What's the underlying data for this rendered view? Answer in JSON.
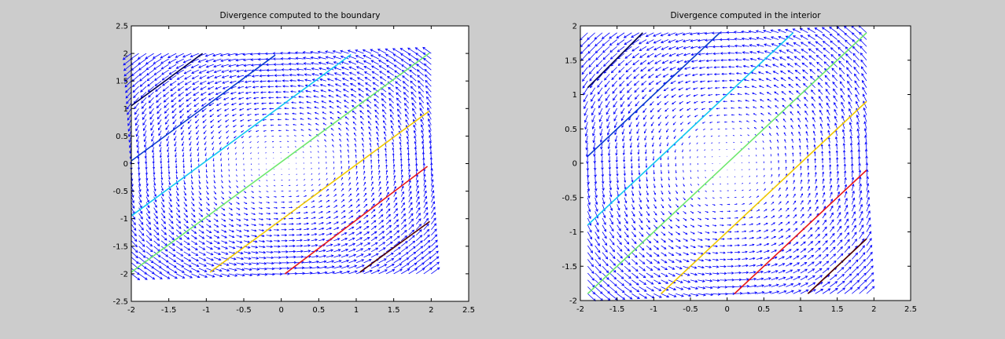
{
  "chart_data": [
    {
      "type": "quiver",
      "title": "Divergence computed to the boundary",
      "xlabel": "",
      "ylabel": "",
      "xlim": [
        -2,
        2.5
      ],
      "ylim": [
        -2.5,
        2.5
      ],
      "xticks": [
        -2,
        -1.5,
        -1,
        -0.5,
        0,
        0.5,
        1,
        1.5,
        2,
        2.5
      ],
      "yticks": [
        -2.5,
        -2,
        -1.5,
        -1,
        -0.5,
        0,
        0.5,
        1,
        1.5,
        2,
        2.5
      ],
      "xtick_labels": [
        "-2",
        "-1.5",
        "-1",
        "-0.5",
        "0",
        "0.5",
        "1",
        "1.5",
        "2",
        "2.5"
      ],
      "ytick_labels": [
        "-2.5",
        "-2",
        "-1.5",
        "-1",
        "-0.5",
        "0",
        "0.5",
        "1",
        "1.5",
        "2",
        "2.5"
      ],
      "field": {
        "x_range": [
          -2,
          2
        ],
        "y_range": [
          -2,
          2
        ],
        "x_step": 0.1,
        "y_step": 0.1,
        "arrow_color": "#0000ff"
      },
      "contours": [
        {
          "color": "#000050",
          "x": [
            -2.0,
            -1.05
          ],
          "y": [
            1.05,
            2.0
          ]
        },
        {
          "color": "#0a3ccf",
          "x": [
            -2.0,
            -0.08
          ],
          "y": [
            0.05,
            1.97
          ]
        },
        {
          "color": "#12c8f0",
          "x": [
            -2.0,
            0.93
          ],
          "y": [
            -0.95,
            1.98
          ]
        },
        {
          "color": "#6ee86e",
          "x": [
            -2.0,
            1.98
          ],
          "y": [
            -1.97,
            2.01
          ]
        },
        {
          "color": "#f0c800",
          "x": [
            -0.95,
            1.97
          ],
          "y": [
            -1.97,
            0.95
          ]
        },
        {
          "color": "#e81818",
          "x": [
            0.05,
            1.95
          ],
          "y": [
            -2.0,
            -0.05
          ]
        },
        {
          "color": "#500000",
          "x": [
            1.05,
            1.98
          ],
          "y": [
            -1.97,
            -1.05
          ]
        }
      ]
    },
    {
      "type": "quiver",
      "title": "Divergence computed in the interior",
      "xlabel": "",
      "ylabel": "",
      "xlim": [
        -2,
        2.5
      ],
      "ylim": [
        -2,
        2
      ],
      "xticks": [
        -2,
        -1.5,
        -1,
        -0.5,
        0,
        0.5,
        1,
        1.5,
        2,
        2.5
      ],
      "yticks": [
        -2,
        -1.5,
        -1,
        -0.5,
        0,
        0.5,
        1,
        1.5,
        2
      ],
      "xtick_labels": [
        "-2",
        "-1.5",
        "-1",
        "-0.5",
        "0",
        "0.5",
        "1",
        "1.5",
        "2",
        "2.5"
      ],
      "ytick_labels": [
        "-2",
        "-1.5",
        "-1",
        "-0.5",
        "0",
        "0.5",
        "1",
        "1.5",
        "2"
      ],
      "field": {
        "x_range": [
          -1.9,
          1.9
        ],
        "y_range": [
          -1.9,
          1.9
        ],
        "x_step": 0.1,
        "y_step": 0.1,
        "arrow_color": "#0000ff"
      },
      "contours": [
        {
          "color": "#000050",
          "x": [
            -1.9,
            -1.15
          ],
          "y": [
            1.1,
            1.9
          ]
        },
        {
          "color": "#0a3ccf",
          "x": [
            -1.9,
            -0.1
          ],
          "y": [
            0.1,
            1.9
          ]
        },
        {
          "color": "#12c8f0",
          "x": [
            -1.9,
            0.9
          ],
          "y": [
            -0.9,
            1.9
          ]
        },
        {
          "color": "#6ee86e",
          "x": [
            -1.9,
            1.9
          ],
          "y": [
            -1.9,
            1.9
          ]
        },
        {
          "color": "#f0c800",
          "x": [
            -0.9,
            1.9
          ],
          "y": [
            -1.9,
            0.9
          ]
        },
        {
          "color": "#e81818",
          "x": [
            0.1,
            1.9
          ],
          "y": [
            -1.9,
            -0.1
          ]
        },
        {
          "color": "#500000",
          "x": [
            1.1,
            1.9
          ],
          "y": [
            -1.9,
            -1.1
          ]
        }
      ]
    }
  ]
}
